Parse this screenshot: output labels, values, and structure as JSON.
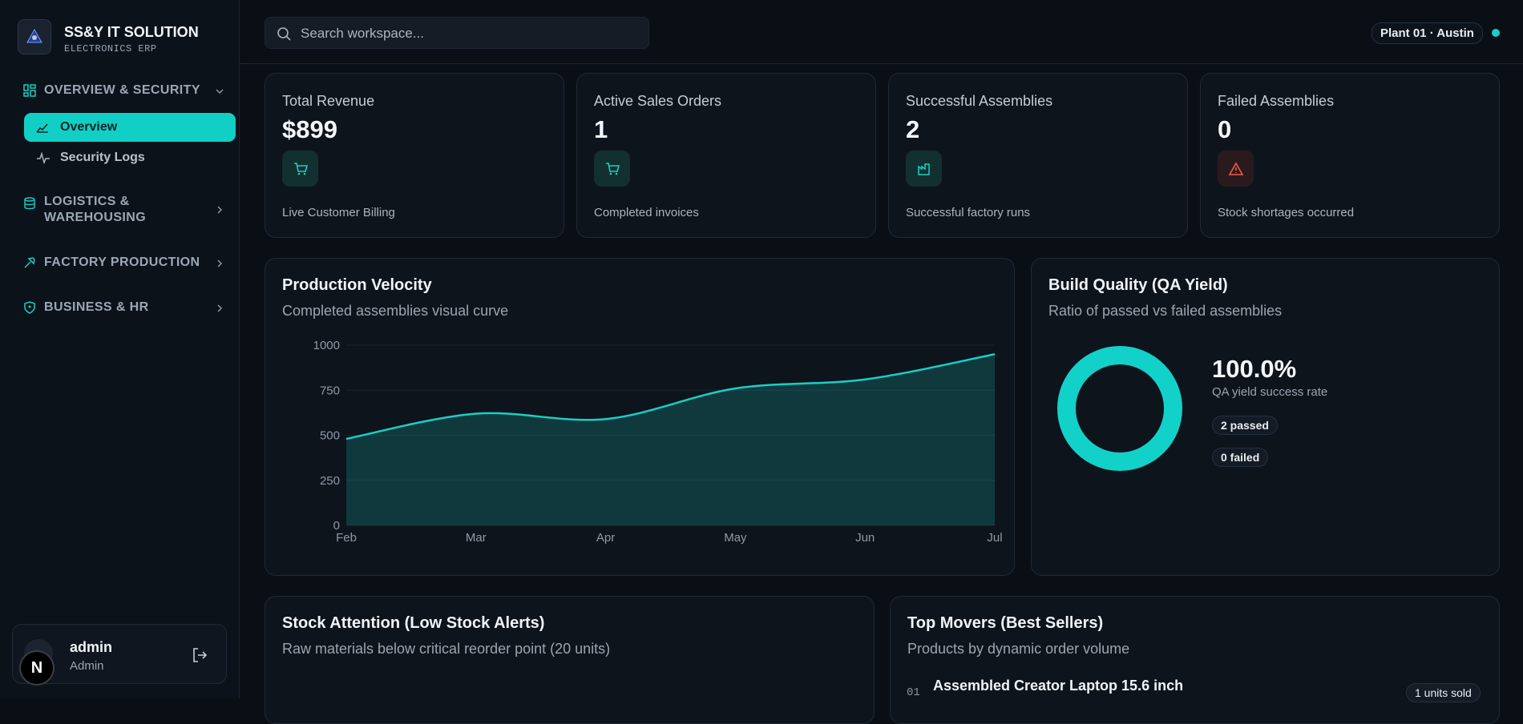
{
  "sidebar": {
    "brand": "SS&Y IT SOLUTION",
    "tagline": "ELECTRONICS ERP",
    "nav": [
      {
        "label": "OVERVIEW & SECURITY",
        "items": [
          "Overview",
          "Security Logs"
        ]
      },
      {
        "label": "LOGISTICS & WAREHOUSING"
      },
      {
        "label": "FACTORY PRODUCTION"
      },
      {
        "label": "BUSINESS & HR"
      }
    ],
    "user": {
      "name": "admin",
      "role": "Admin"
    },
    "dev_badge": "N"
  },
  "header": {
    "search_placeholder": "Search workspace...",
    "location": "Plant 01 · Austin"
  },
  "kpis": [
    {
      "title": "Total Revenue",
      "value": "$899",
      "caption": "Live Customer Billing"
    },
    {
      "title": "Active Sales Orders",
      "value": "1",
      "caption": "Completed invoices"
    },
    {
      "title": "Successful Assemblies",
      "value": "2",
      "caption": "Successful factory runs"
    },
    {
      "title": "Failed Assemblies",
      "value": "0",
      "caption": "Stock shortages occurred"
    }
  ],
  "chart_data": [
    {
      "type": "area",
      "title": "Production Velocity",
      "subtitle": "Completed assemblies visual curve",
      "categories": [
        "Feb",
        "Mar",
        "Apr",
        "May",
        "Jun",
        "Jul"
      ],
      "values": [
        480,
        620,
        590,
        760,
        810,
        950
      ],
      "color": "#19cfc6",
      "ylim": [
        0,
        1000
      ],
      "yticks": [
        0,
        250,
        500,
        750,
        1000
      ],
      "grid": true
    },
    {
      "type": "pie",
      "title": "Build Quality (QA Yield)",
      "subtitle": "Ratio of passed vs failed assemblies",
      "values": [
        2,
        0
      ],
      "value_labels": [
        "2 passed",
        "0 failed"
      ],
      "colors": [
        "#12d1c9",
        "#ef5a4c"
      ],
      "donut": true,
      "center_label": "100.0%",
      "center_caption": "QA yield success rate"
    }
  ],
  "panels": [
    {
      "title": "Stock Attention (Low Stock Alerts)",
      "subtitle": "Raw materials below critical reorder point (20 units)"
    },
    {
      "title": "Top Movers (Best Sellers)",
      "subtitle": "Products by dynamic order volume",
      "rows": [
        {
          "rank": "01",
          "name": "Assembled Creator Laptop 15.6 inch",
          "badge": "1 units sold"
        }
      ]
    }
  ]
}
